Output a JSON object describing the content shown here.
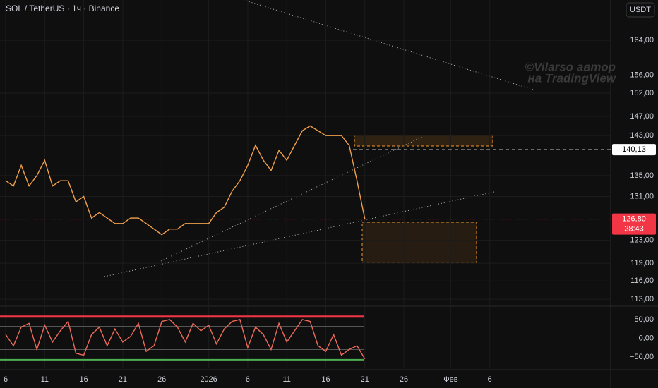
{
  "chart_data": {
    "type": "line",
    "title": "SOL / TetherUS · 1ч · Binance",
    "currency": "USDT",
    "watermark": [
      "©Vilarso автор",
      "на TradingView"
    ],
    "log": true,
    "categories": [
      "6",
      null,
      null,
      null,
      null,
      "11",
      null,
      null,
      null,
      null,
      "16",
      null,
      null,
      null,
      null,
      "21",
      null,
      null,
      null,
      null,
      "26",
      null,
      null,
      null,
      null,
      null,
      "2026",
      null,
      null,
      null,
      null,
      "6",
      null,
      null,
      null,
      null,
      "11",
      null,
      null,
      null,
      null,
      "16",
      null,
      null,
      null,
      null,
      "21",
      null,
      null,
      null,
      null,
      "26",
      null,
      null,
      null,
      null,
      null,
      "Фев",
      null,
      null,
      null,
      null,
      "6",
      null,
      null,
      null,
      null,
      null,
      null,
      null,
      null,
      null,
      null,
      null,
      null,
      null
    ],
    "series": [
      {
        "color": "#f0a04b",
        "values": [
          134,
          133,
          137,
          133,
          135,
          138,
          133,
          134,
          134,
          130,
          131,
          127,
          128,
          127,
          126,
          126,
          127,
          127,
          126,
          125,
          124,
          125,
          125,
          126,
          126,
          126,
          126,
          128,
          129,
          132,
          134,
          137,
          141,
          138,
          136,
          140,
          138,
          141,
          144,
          145,
          144,
          143,
          143,
          143,
          141,
          134,
          126.8,
          null,
          null,
          null,
          null,
          null,
          null,
          null,
          null,
          null,
          null,
          null,
          null,
          null,
          null,
          null,
          null,
          null,
          null,
          null,
          null,
          null,
          null,
          null,
          null,
          null,
          null,
          null,
          null,
          null
        ]
      },
      {
        "axis": "y2",
        "color": "#ef6a5a",
        "values": [
          10,
          -20,
          30,
          40,
          -30,
          35,
          -10,
          20,
          45,
          -40,
          -45,
          10,
          30,
          -20,
          25,
          -10,
          5,
          40,
          -35,
          -20,
          45,
          50,
          30,
          -10,
          40,
          20,
          35,
          -15,
          25,
          45,
          50,
          -25,
          30,
          10,
          -30,
          40,
          -10,
          20,
          50,
          45,
          -20,
          -35,
          10,
          -45,
          -30,
          -20,
          -55,
          null,
          null,
          null,
          null,
          null,
          null,
          null,
          null,
          null,
          null,
          null,
          null,
          null,
          null,
          null,
          null,
          null,
          null,
          null,
          null,
          null,
          null,
          null,
          null,
          null,
          null,
          null,
          null,
          null
        ]
      }
    ],
    "ylim": [
      112.1,
      173.8
    ],
    "yticks": [
      {
        "value": 164,
        "label": "164,00"
      },
      {
        "value": 156,
        "label": "156,00"
      },
      {
        "value": 152,
        "label": "152,00"
      },
      {
        "value": 147,
        "label": "147,00"
      },
      {
        "value": 143,
        "label": "143,00"
      },
      {
        "value": 135,
        "label": "135,00"
      },
      {
        "value": 131,
        "label": "131,00"
      },
      {
        "value": 123,
        "label": "123,00"
      },
      {
        "value": 119,
        "label": "119,00"
      },
      {
        "value": 116,
        "label": "116,00"
      },
      {
        "value": 113,
        "label": "113,00"
      }
    ],
    "y2lim": [
      -80,
      80
    ],
    "y2ticks": [
      {
        "value": 50,
        "label": "50,00"
      },
      {
        "value": 0,
        "label": "0,00"
      },
      {
        "value": -50,
        "label": "−50,00"
      }
    ],
    "y2_levels": [
      {
        "value": 58,
        "color": "#f23645"
      },
      {
        "value": 32,
        "color": "#555555"
      },
      {
        "value": -30,
        "color": "#555555"
      },
      {
        "value": -58,
        "color": "#4caf50"
      }
    ],
    "price_labels": [
      {
        "value": 140.13,
        "label": "140,13",
        "color": "#ffffff"
      },
      {
        "value": 126.8,
        "label": "126,80",
        "color": "#f23645"
      }
    ],
    "countdown": "28:43",
    "grid": true
  }
}
